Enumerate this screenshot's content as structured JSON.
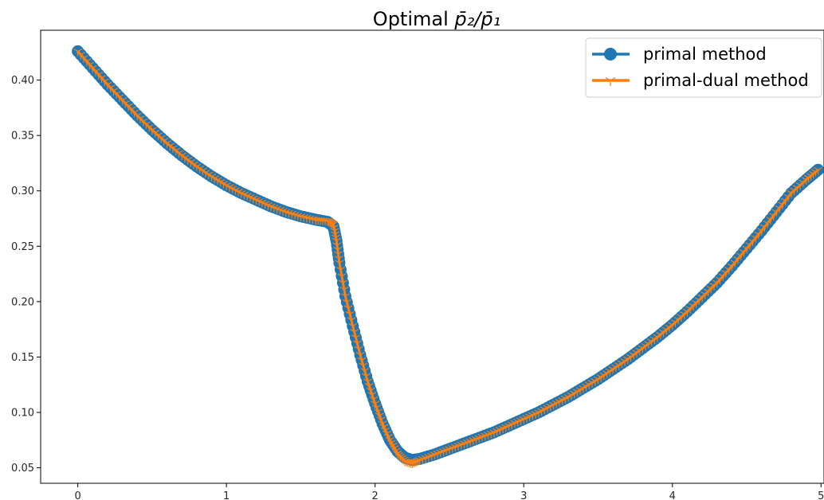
{
  "chart_data": {
    "type": "line",
    "title_main": "Optimal ",
    "title_math": "p̄₂/p̄₁",
    "xlabel": "",
    "ylabel": "",
    "xlim": [
      -0.25,
      5.02
    ],
    "ylim": [
      0.036,
      0.445
    ],
    "x_ticks": [
      0,
      1,
      2,
      3,
      4,
      5
    ],
    "y_ticks": [
      0.05,
      0.1,
      0.15,
      0.2,
      0.25,
      0.3,
      0.35,
      0.4
    ],
    "y_tick_labels": [
      "0.05",
      "0.10",
      "0.15",
      "0.20",
      "0.25",
      "0.30",
      "0.35",
      "0.40"
    ],
    "legend_placement": "top-right",
    "grid": false,
    "x": [
      0.0,
      0.1,
      0.2,
      0.3,
      0.4,
      0.5,
      0.6,
      0.7,
      0.8,
      0.9,
      1.0,
      1.1,
      1.2,
      1.3,
      1.4,
      1.5,
      1.6,
      1.68,
      1.72,
      1.74,
      1.76,
      1.8,
      1.85,
      1.9,
      1.95,
      2.0,
      2.05,
      2.1,
      2.15,
      2.2,
      2.25,
      2.3,
      2.4,
      2.5,
      2.6,
      2.7,
      2.8,
      2.9,
      3.0,
      3.1,
      3.2,
      3.3,
      3.4,
      3.5,
      3.6,
      3.7,
      3.8,
      3.9,
      4.0,
      4.1,
      4.2,
      4.3,
      4.4,
      4.5,
      4.6,
      4.7,
      4.8,
      4.9,
      4.98
    ],
    "series": [
      {
        "name": "primal method",
        "color": "#1f77b4",
        "marker": "circle",
        "values": [
          0.426,
          0.411,
          0.396,
          0.382,
          0.368,
          0.355,
          0.343,
          0.332,
          0.322,
          0.313,
          0.305,
          0.298,
          0.292,
          0.286,
          0.281,
          0.277,
          0.274,
          0.272,
          0.268,
          0.255,
          0.235,
          0.205,
          0.178,
          0.152,
          0.128,
          0.108,
          0.09,
          0.075,
          0.065,
          0.059,
          0.057,
          0.058,
          0.062,
          0.067,
          0.072,
          0.077,
          0.082,
          0.088,
          0.094,
          0.1,
          0.107,
          0.114,
          0.122,
          0.13,
          0.139,
          0.148,
          0.158,
          0.168,
          0.179,
          0.191,
          0.204,
          0.217,
          0.232,
          0.248,
          0.264,
          0.281,
          0.298,
          0.31,
          0.319
        ]
      },
      {
        "name": "primal-dual method",
        "color": "#ff7f0e",
        "marker": "tri_down",
        "values": [
          0.426,
          0.411,
          0.396,
          0.382,
          0.368,
          0.355,
          0.343,
          0.332,
          0.322,
          0.313,
          0.305,
          0.298,
          0.292,
          0.286,
          0.281,
          0.277,
          0.274,
          0.273,
          0.27,
          0.255,
          0.235,
          0.205,
          0.178,
          0.152,
          0.128,
          0.108,
          0.09,
          0.075,
          0.063,
          0.056,
          0.054,
          0.057,
          0.062,
          0.067,
          0.072,
          0.077,
          0.082,
          0.088,
          0.094,
          0.1,
          0.107,
          0.114,
          0.122,
          0.13,
          0.139,
          0.148,
          0.158,
          0.168,
          0.179,
          0.191,
          0.204,
          0.217,
          0.232,
          0.248,
          0.264,
          0.281,
          0.298,
          0.31,
          0.319
        ]
      }
    ]
  }
}
